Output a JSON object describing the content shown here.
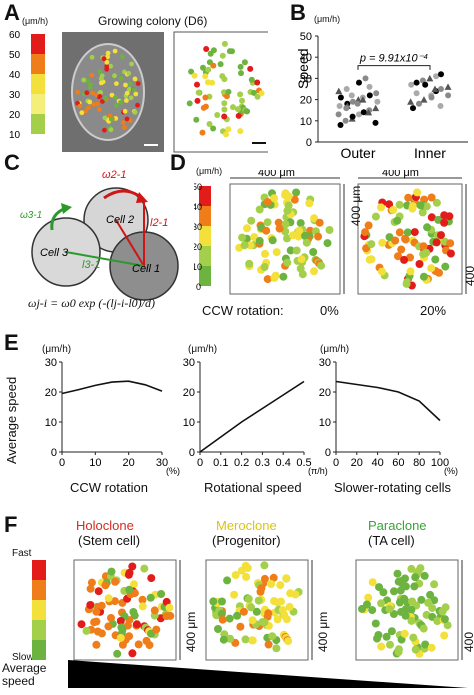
{
  "panels": {
    "A": {
      "label": "A",
      "unit": "(μm/h)",
      "title": "Growing colony (D6)",
      "scale_ticks": [
        "60",
        "50",
        "40",
        "30",
        "20",
        "10"
      ],
      "scale_colors": [
        "#e21b1b",
        "#ef7d1a",
        "#f3e03a",
        "#f3ef7a",
        "#a3cf4b",
        "#6db33f"
      ]
    },
    "B": {
      "label": "B",
      "unit": "(μm/h)",
      "ylabel": "Speed",
      "pvalue": "p = 9.91x10⁻⁴"
    },
    "C": {
      "label": "C",
      "cell1": "Cell 1",
      "cell2": "Cell 2",
      "cell3": "Cell 3",
      "omega21": "ω2-1",
      "omega31": "ω3-1",
      "l21": "l2-1",
      "l31": "l3-1",
      "equation": "ωj-i = ω0 exp (-(lj-i-l0)/d)"
    },
    "D": {
      "label": "D",
      "unit": "(μm/h)",
      "width_label": "400 μm",
      "height_label": "400 μm",
      "ticks": [
        "50",
        "40",
        "30",
        "20",
        "10",
        "0"
      ],
      "ccw_label": "CCW rotation:",
      "left_value": "0%",
      "right_value": "20%"
    },
    "E": {
      "label": "E",
      "unit": "(μm/h)",
      "ylabel": "Average speed",
      "xlabel1": "CCW rotation",
      "xlabel2": "Rotational speed",
      "xlabel3": "Slower-rotating cells",
      "unit1": "(%)",
      "unit2": "(π/h)",
      "unit3": "(%)"
    },
    "F": {
      "label": "F",
      "fast": "Fast",
      "slow": "Slow",
      "avg_speed": "Average\nspeed",
      "c1_name": "Holoclone",
      "c1_sub": "(Stem cell)",
      "c2_name": "Meroclone",
      "c2_sub": "(Progenitor)",
      "c3_name": "Paraclone",
      "c3_sub": "(TA cell)",
      "size_label": "400 μm",
      "c1_color": "#d62b1f",
      "c2_color": "#d9c31a",
      "c3_color": "#3aa23a"
    }
  },
  "chart_data": [
    {
      "type": "scatter",
      "panel": "B",
      "categories": [
        "Outer",
        "Inner"
      ],
      "ylim": [
        0,
        50
      ],
      "yticks": [
        0,
        10,
        20,
        30,
        40,
        50
      ],
      "series": [
        {
          "name": "Outer",
          "values": [
            8,
            10,
            11,
            13,
            14,
            15,
            16,
            17,
            18,
            19,
            20,
            21,
            22,
            23,
            24,
            25,
            12,
            18,
            20,
            26,
            9,
            13,
            17,
            22,
            28,
            30,
            14,
            19,
            21,
            16
          ]
        },
        {
          "name": "Inner",
          "values": [
            16,
            18,
            20,
            22,
            24,
            25,
            26,
            27,
            28,
            29,
            30,
            31,
            32,
            22,
            19,
            23,
            27,
            21,
            25,
            17
          ]
        }
      ]
    },
    {
      "type": "line",
      "panel": "E1",
      "x": [
        0,
        5,
        10,
        15,
        20,
        25,
        30
      ],
      "y": [
        19.5,
        20.8,
        22.2,
        23.3,
        23.6,
        22.4,
        20.3
      ],
      "xticks": [
        "0",
        "10",
        "20",
        "30"
      ],
      "ylim": [
        0,
        30
      ],
      "yticks": [
        "0",
        "10",
        "20",
        "30"
      ]
    },
    {
      "type": "line",
      "panel": "E2",
      "x": [
        0,
        0.1,
        0.2,
        0.3,
        0.4,
        0.5
      ],
      "y": [
        0,
        5,
        10,
        14.5,
        19,
        23.5
      ],
      "xticks": [
        "0",
        "0.1",
        "0.2",
        "0.3",
        "0.4",
        "0.5"
      ],
      "ylim": [
        0,
        30
      ],
      "yticks": [
        "0",
        "10",
        "20",
        "30"
      ]
    },
    {
      "type": "line",
      "panel": "E3",
      "x": [
        0,
        20,
        40,
        60,
        80,
        100
      ],
      "y": [
        23.5,
        22.5,
        21.5,
        20,
        17,
        10.5
      ],
      "xticks": [
        "0",
        "20",
        "40",
        "60",
        "80",
        "100"
      ],
      "ylim": [
        0,
        30
      ],
      "yticks": [
        "0",
        "10",
        "20",
        "30"
      ]
    }
  ]
}
